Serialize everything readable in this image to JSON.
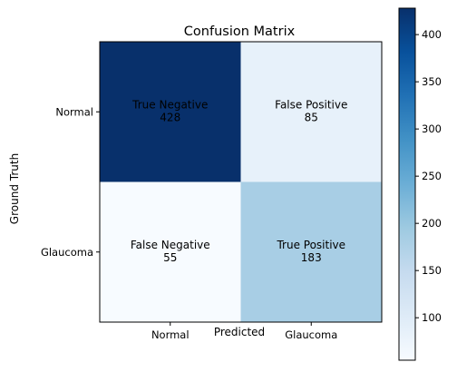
{
  "chart_data": {
    "type": "heatmap",
    "title": "Confusion Matrix",
    "xlabel": "Predicted",
    "ylabel": "Ground Truth",
    "x_categories": [
      "Normal",
      "Glaucoma"
    ],
    "y_categories": [
      "Normal",
      "Glaucoma"
    ],
    "cells": [
      {
        "row": 0,
        "col": 0,
        "label": "True Negative",
        "value": 428
      },
      {
        "row": 0,
        "col": 1,
        "label": "False Positive",
        "value": 85
      },
      {
        "row": 1,
        "col": 0,
        "label": "False Negative",
        "value": 55
      },
      {
        "row": 1,
        "col": 1,
        "label": "True Positive",
        "value": 183
      }
    ],
    "colormap": "Blues",
    "colorbar": {
      "range": [
        55,
        428
      ],
      "ticks": [
        100,
        150,
        200,
        250,
        300,
        350,
        400
      ],
      "tick_labels": [
        "100",
        "150",
        "200",
        "250",
        "300",
        "350",
        "400"
      ]
    }
  }
}
